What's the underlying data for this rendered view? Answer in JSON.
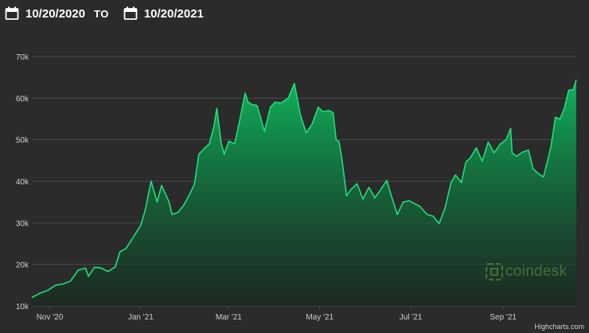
{
  "date_range": {
    "from_value": "10/20/2020",
    "to_label": "TO",
    "to_value": "10/20/2021"
  },
  "watermark": {
    "text": "coindesk"
  },
  "credits": "Highcharts.com",
  "colors": {
    "background": "#2b2b2b",
    "line": "#1fe07a",
    "area_top": "#0fb35c",
    "area_bottom": "#132a1c",
    "grid": "#4a4a4a",
    "axis_label": "#cfcfcf"
  },
  "icons": [
    "calendar-icon",
    "calendar-icon",
    "coindesk-logo-icon"
  ],
  "chart_data": {
    "type": "area",
    "title": "",
    "xlabel": "",
    "ylabel": "",
    "xlim": [
      "2020-10-20",
      "2021-10-20"
    ],
    "ylim": [
      10000,
      70000
    ],
    "grid": true,
    "legend": "none",
    "yticks": [
      10000,
      20000,
      30000,
      40000,
      50000,
      60000,
      70000
    ],
    "ytick_labels": [
      "10k",
      "20k",
      "30k",
      "40k",
      "50k",
      "60k",
      "70k"
    ],
    "xticks": [
      "2020-11-01",
      "2021-01-01",
      "2021-03-01",
      "2021-05-01",
      "2021-07-01",
      "2021-09-01"
    ],
    "xtick_labels": [
      "Nov '20",
      "Jan '21",
      "Mar '21",
      "May '21",
      "Jul '21",
      "Sep '21"
    ],
    "series": [
      {
        "x": [
          "2020-10-20",
          "2020-10-25",
          "2020-10-31",
          "2020-11-05",
          "2020-11-10",
          "2020-11-15",
          "2020-11-20",
          "2020-11-25",
          "2020-11-27",
          "2020-12-01",
          "2020-12-05",
          "2020-12-10",
          "2020-12-15",
          "2020-12-18",
          "2020-12-22",
          "2020-12-27",
          "2021-01-01",
          "2021-01-04",
          "2021-01-08",
          "2021-01-12",
          "2021-01-15",
          "2021-01-20",
          "2021-01-22",
          "2021-01-26",
          "2021-01-30",
          "2021-02-03",
          "2021-02-06",
          "2021-02-09",
          "2021-02-13",
          "2021-02-16",
          "2021-02-19",
          "2021-02-21",
          "2021-02-24",
          "2021-02-26",
          "2021-03-01",
          "2021-03-05",
          "2021-03-08",
          "2021-03-12",
          "2021-03-14",
          "2021-03-17",
          "2021-03-20",
          "2021-03-25",
          "2021-03-29",
          "2021-04-01",
          "2021-04-05",
          "2021-04-10",
          "2021-04-14",
          "2021-04-18",
          "2021-04-22",
          "2021-04-26",
          "2021-04-30",
          "2021-05-03",
          "2021-05-07",
          "2021-05-10",
          "2021-05-12",
          "2021-05-14",
          "2021-05-16",
          "2021-05-19",
          "2021-05-22",
          "2021-05-26",
          "2021-05-30",
          "2021-06-03",
          "2021-06-07",
          "2021-06-10",
          "2021-06-15",
          "2021-06-18",
          "2021-06-22",
          "2021-06-26",
          "2021-06-30",
          "2021-07-03",
          "2021-07-07",
          "2021-07-12",
          "2021-07-16",
          "2021-07-20",
          "2021-07-24",
          "2021-07-28",
          "2021-07-31",
          "2021-08-04",
          "2021-08-07",
          "2021-08-10",
          "2021-08-14",
          "2021-08-18",
          "2021-08-22",
          "2021-08-26",
          "2021-08-30",
          "2021-09-03",
          "2021-09-06",
          "2021-09-07",
          "2021-09-10",
          "2021-09-14",
          "2021-09-18",
          "2021-09-21",
          "2021-09-24",
          "2021-09-28",
          "2021-09-30",
          "2021-10-03",
          "2021-10-06",
          "2021-10-09",
          "2021-10-12",
          "2021-10-15",
          "2021-10-18",
          "2021-10-20"
        ],
        "y": [
          12000,
          13000,
          13800,
          15000,
          15300,
          16000,
          18600,
          19100,
          17100,
          19300,
          19200,
          18300,
          19400,
          23000,
          23800,
          26500,
          29400,
          33000,
          40000,
          35000,
          39000,
          35000,
          32000,
          32500,
          34300,
          37000,
          39300,
          46500,
          48000,
          49000,
          53000,
          57500,
          49000,
          46500,
          49600,
          49000,
          54000,
          61200,
          59000,
          58400,
          58200,
          52000,
          57800,
          59000,
          58800,
          60000,
          63500,
          56000,
          51600,
          53800,
          57800,
          56700,
          57000,
          56500,
          50000,
          49500,
          45000,
          36500,
          38000,
          39400,
          35700,
          38500,
          36000,
          37500,
          40200,
          36500,
          32000,
          35000,
          35300,
          34700,
          34000,
          32000,
          31600,
          29800,
          33500,
          39600,
          41500,
          39700,
          44600,
          45600,
          48000,
          44800,
          49400,
          46800,
          48900,
          50000,
          52700,
          46800,
          46000,
          47000,
          47500,
          43000,
          42000,
          41000,
          43800,
          48200,
          55400,
          54900,
          57500,
          61900,
          62000,
          64400
        ]
      }
    ]
  }
}
